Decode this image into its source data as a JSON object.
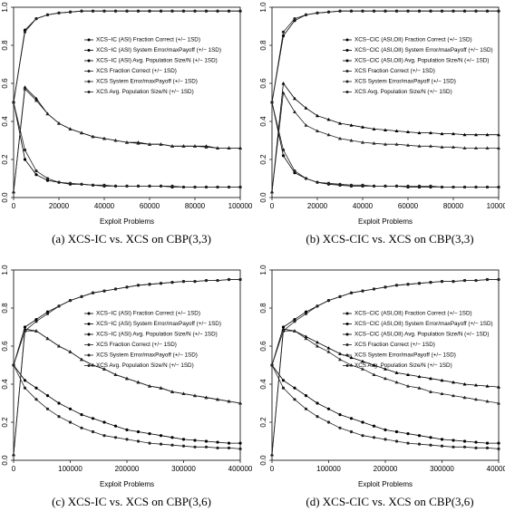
{
  "chart_data": [
    {
      "type": "line",
      "caption": "(a) XCS-IC vs. XCS on CBP(3,3)",
      "xlabel": "Exploit Problems",
      "x": [
        0,
        5000,
        10000,
        15000,
        20000,
        25000,
        30000,
        35000,
        40000,
        45000,
        50000,
        55000,
        60000,
        65000,
        70000,
        75000,
        80000,
        85000,
        90000,
        95000,
        100000
      ],
      "xlim": [
        0,
        100000
      ],
      "xticks": [
        0,
        20000,
        40000,
        60000,
        80000,
        100000
      ],
      "ylim": [
        0,
        1
      ],
      "yticks": [
        {
          "value": 0,
          "label": "0.0"
        },
        {
          "value": 0.2,
          "label": "0.2"
        },
        {
          "value": 0.4,
          "label": "0.4"
        },
        {
          "value": 0.6,
          "label": "0.6"
        },
        {
          "value": 0.8,
          "label": "0.8"
        },
        {
          "value": 1,
          "label": "1.0"
        }
      ],
      "series": [
        {
          "name": "XCS−IC (ASI) Fraction Correct (+/− 1SD)",
          "color": "#000",
          "values": [
            0.5,
            0.88,
            0.94,
            0.96,
            0.97,
            0.975,
            0.98,
            0.98,
            0.98,
            0.98,
            0.98,
            0.98,
            0.98,
            0.98,
            0.98,
            0.98,
            0.98,
            0.98,
            0.98,
            0.98,
            0.98
          ]
        },
        {
          "name": "XCS−IC (ASI) System Error/maxPayoff (+/− 1SD)",
          "color": "#000",
          "values": [
            0.5,
            0.2,
            0.12,
            0.09,
            0.08,
            0.07,
            0.07,
            0.065,
            0.06,
            0.06,
            0.06,
            0.06,
            0.06,
            0.06,
            0.055,
            0.055,
            0.055,
            0.055,
            0.055,
            0.055,
            0.055
          ]
        },
        {
          "name": "XCS−IC (ASI) Avg. Population Size/N (+/− 1SD)",
          "color": "#000",
          "values": [
            0.03,
            0.58,
            0.52,
            0.44,
            0.39,
            0.36,
            0.34,
            0.32,
            0.31,
            0.3,
            0.29,
            0.29,
            0.28,
            0.28,
            0.27,
            0.27,
            0.27,
            0.27,
            0.26,
            0.26,
            0.26
          ]
        },
        {
          "name": "XCS Fraction Correct (+/− 1SD)",
          "color": "#222",
          "values": [
            0.5,
            0.87,
            0.94,
            0.96,
            0.97,
            0.975,
            0.98,
            0.98,
            0.98,
            0.98,
            0.98,
            0.98,
            0.98,
            0.98,
            0.98,
            0.98,
            0.98,
            0.98,
            0.98,
            0.98,
            0.98
          ]
        },
        {
          "name": "XCS System Error/maxPayoff (+/− 1SD)",
          "color": "#222",
          "values": [
            0.5,
            0.25,
            0.14,
            0.1,
            0.08,
            0.075,
            0.07,
            0.065,
            0.065,
            0.06,
            0.06,
            0.06,
            0.06,
            0.06,
            0.06,
            0.055,
            0.055,
            0.055,
            0.055,
            0.055,
            0.055
          ]
        },
        {
          "name": "XCS Avg. Population Size/N (+/− 1SD)",
          "color": "#222",
          "values": [
            0.03,
            0.57,
            0.51,
            0.44,
            0.39,
            0.36,
            0.34,
            0.32,
            0.31,
            0.3,
            0.29,
            0.285,
            0.28,
            0.28,
            0.27,
            0.27,
            0.27,
            0.265,
            0.26,
            0.26,
            0.26
          ]
        }
      ]
    },
    {
      "type": "line",
      "caption": "(b) XCS-CIC vs. XCS on CBP(3,3)",
      "xlabel": "Exploit Problems",
      "x": [
        0,
        5000,
        10000,
        15000,
        20000,
        25000,
        30000,
        35000,
        40000,
        45000,
        50000,
        55000,
        60000,
        65000,
        70000,
        75000,
        80000,
        85000,
        90000,
        95000,
        100000
      ],
      "xlim": [
        0,
        100000
      ],
      "xticks": [
        0,
        20000,
        40000,
        60000,
        80000,
        100000
      ],
      "ylim": [
        0,
        1
      ],
      "yticks": [
        {
          "value": 0,
          "label": "0.0"
        },
        {
          "value": 0.2,
          "label": "0.2"
        },
        {
          "value": 0.4,
          "label": "0.4"
        },
        {
          "value": 0.6,
          "label": "0.6"
        },
        {
          "value": 0.8,
          "label": "0.8"
        },
        {
          "value": 1,
          "label": "1.0"
        }
      ],
      "series": [
        {
          "name": "XCS−CIC (ASI,OII) Fraction Correct (+/− 1SD)",
          "color": "#000",
          "values": [
            0.5,
            0.85,
            0.93,
            0.96,
            0.97,
            0.975,
            0.98,
            0.98,
            0.98,
            0.98,
            0.98,
            0.98,
            0.98,
            0.98,
            0.98,
            0.98,
            0.98,
            0.98,
            0.98,
            0.98,
            0.98
          ]
        },
        {
          "name": "XCS−CIC (ASI,OII) System Error/maxPayoff (+/− 1SD)",
          "color": "#000",
          "values": [
            0.5,
            0.22,
            0.13,
            0.1,
            0.08,
            0.07,
            0.065,
            0.06,
            0.06,
            0.06,
            0.06,
            0.06,
            0.055,
            0.055,
            0.055,
            0.055,
            0.055,
            0.055,
            0.055,
            0.055,
            0.055
          ]
        },
        {
          "name": "XCS−CIC (ASI,OII) Avg. Population Size/N (+/− 1SD)",
          "color": "#000",
          "values": [
            0.03,
            0.6,
            0.52,
            0.47,
            0.43,
            0.41,
            0.39,
            0.38,
            0.37,
            0.36,
            0.355,
            0.35,
            0.345,
            0.34,
            0.34,
            0.335,
            0.335,
            0.33,
            0.33,
            0.33,
            0.33
          ]
        },
        {
          "name": "XCS Fraction Correct (+/− 1SD)",
          "color": "#222",
          "values": [
            0.5,
            0.87,
            0.94,
            0.96,
            0.97,
            0.975,
            0.98,
            0.98,
            0.98,
            0.98,
            0.98,
            0.98,
            0.98,
            0.98,
            0.98,
            0.98,
            0.98,
            0.98,
            0.98,
            0.98,
            0.98
          ]
        },
        {
          "name": "XCS System Error/maxPayoff (+/− 1SD)",
          "color": "#222",
          "values": [
            0.5,
            0.25,
            0.14,
            0.1,
            0.08,
            0.075,
            0.07,
            0.065,
            0.065,
            0.06,
            0.06,
            0.06,
            0.06,
            0.06,
            0.06,
            0.055,
            0.055,
            0.055,
            0.055,
            0.055,
            0.055
          ]
        },
        {
          "name": "XCS Avg. Population Size/N (+/− 1SD)",
          "color": "#222",
          "values": [
            0.03,
            0.55,
            0.45,
            0.38,
            0.35,
            0.33,
            0.31,
            0.3,
            0.29,
            0.285,
            0.28,
            0.28,
            0.275,
            0.27,
            0.27,
            0.265,
            0.265,
            0.26,
            0.26,
            0.26,
            0.26
          ]
        }
      ]
    },
    {
      "type": "line",
      "caption": "(c) XCS-IC vs. XCS on CBP(3,6)",
      "xlabel": "Exploit Problems",
      "x": [
        0,
        20000,
        40000,
        60000,
        80000,
        100000,
        120000,
        140000,
        160000,
        180000,
        200000,
        220000,
        240000,
        260000,
        280000,
        300000,
        320000,
        340000,
        360000,
        380000,
        400000
      ],
      "xlim": [
        0,
        400000
      ],
      "xticks": [
        0,
        100000,
        200000,
        300000,
        400000
      ],
      "ylim": [
        0,
        1
      ],
      "yticks": [
        {
          "value": 0,
          "label": "0.0"
        },
        {
          "value": 0.2,
          "label": "0.2"
        },
        {
          "value": 0.4,
          "label": "0.4"
        },
        {
          "value": 0.6,
          "label": "0.6"
        },
        {
          "value": 0.8,
          "label": "0.8"
        },
        {
          "value": 1,
          "label": "1.0"
        }
      ],
      "series": [
        {
          "name": "XCS−IC (ASI) Fraction Correct (+/− 1SD)",
          "color": "#000",
          "values": [
            0.5,
            0.7,
            0.74,
            0.78,
            0.81,
            0.84,
            0.86,
            0.88,
            0.89,
            0.9,
            0.91,
            0.92,
            0.925,
            0.93,
            0.935,
            0.94,
            0.94,
            0.945,
            0.945,
            0.95,
            0.95
          ]
        },
        {
          "name": "XCS−IC (ASI) System Error/maxPayoff (+/− 1SD)",
          "color": "#000",
          "values": [
            0.5,
            0.42,
            0.38,
            0.34,
            0.3,
            0.27,
            0.24,
            0.22,
            0.2,
            0.18,
            0.16,
            0.15,
            0.14,
            0.13,
            0.12,
            0.11,
            0.105,
            0.1,
            0.095,
            0.09,
            0.09
          ]
        },
        {
          "name": "XCS−IC (ASI) Avg. Population Size/N (+/− 1SD)",
          "color": "#000",
          "values": [
            0.03,
            0.69,
            0.68,
            0.64,
            0.6,
            0.57,
            0.53,
            0.5,
            0.48,
            0.45,
            0.43,
            0.41,
            0.39,
            0.38,
            0.36,
            0.35,
            0.34,
            0.33,
            0.32,
            0.31,
            0.3
          ]
        },
        {
          "name": "XCS Fraction Correct (+/− 1SD)",
          "color": "#222",
          "values": [
            0.5,
            0.68,
            0.73,
            0.77,
            0.81,
            0.84,
            0.86,
            0.88,
            0.89,
            0.9,
            0.91,
            0.92,
            0.925,
            0.93,
            0.935,
            0.94,
            0.94,
            0.945,
            0.945,
            0.95,
            0.95
          ]
        },
        {
          "name": "XCS System Error/maxPayoff (+/− 1SD)",
          "color": "#222",
          "values": [
            0.5,
            0.38,
            0.32,
            0.27,
            0.23,
            0.2,
            0.17,
            0.15,
            0.13,
            0.12,
            0.11,
            0.1,
            0.09,
            0.085,
            0.08,
            0.075,
            0.07,
            0.07,
            0.065,
            0.065,
            0.06
          ]
        },
        {
          "name": "XCS Avg. Population Size/N (+/− 1SD)",
          "color": "#222",
          "values": [
            0.03,
            0.68,
            0.68,
            0.64,
            0.6,
            0.57,
            0.53,
            0.5,
            0.48,
            0.45,
            0.43,
            0.41,
            0.39,
            0.38,
            0.36,
            0.35,
            0.34,
            0.33,
            0.32,
            0.31,
            0.3
          ]
        }
      ]
    },
    {
      "type": "line",
      "caption": "(d) XCS-CIC vs. XCS on CBP(3,6)",
      "xlabel": "Exploit Problems",
      "x": [
        0,
        20000,
        40000,
        60000,
        80000,
        100000,
        120000,
        140000,
        160000,
        180000,
        200000,
        220000,
        240000,
        260000,
        280000,
        300000,
        320000,
        340000,
        360000,
        380000,
        400000
      ],
      "xlim": [
        0,
        400000
      ],
      "xticks": [
        0,
        100000,
        200000,
        300000,
        400000
      ],
      "ylim": [
        0,
        1
      ],
      "yticks": [
        {
          "value": 0,
          "label": "0.0"
        },
        {
          "value": 0.2,
          "label": "0.2"
        },
        {
          "value": 0.4,
          "label": "0.4"
        },
        {
          "value": 0.6,
          "label": "0.6"
        },
        {
          "value": 0.8,
          "label": "0.8"
        },
        {
          "value": 1,
          "label": "1.0"
        }
      ],
      "series": [
        {
          "name": "XCS−CIC (ASI,OII) Fraction Correct (+/− 1SD)",
          "color": "#000",
          "values": [
            0.5,
            0.7,
            0.74,
            0.78,
            0.81,
            0.84,
            0.86,
            0.88,
            0.89,
            0.9,
            0.91,
            0.92,
            0.925,
            0.93,
            0.935,
            0.94,
            0.94,
            0.945,
            0.945,
            0.95,
            0.95
          ]
        },
        {
          "name": "XCS−CIC (ASI,OII) System Error/maxPayoff (+/− 1SD)",
          "color": "#000",
          "values": [
            0.5,
            0.42,
            0.38,
            0.34,
            0.3,
            0.27,
            0.24,
            0.22,
            0.2,
            0.18,
            0.16,
            0.15,
            0.14,
            0.13,
            0.12,
            0.11,
            0.105,
            0.1,
            0.095,
            0.09,
            0.09
          ]
        },
        {
          "name": "XCS−CIC (ASI,OII) Avg. Population Size/N (+/− 1SD)",
          "color": "#000",
          "values": [
            0.03,
            0.69,
            0.68,
            0.65,
            0.62,
            0.59,
            0.56,
            0.54,
            0.52,
            0.5,
            0.48,
            0.46,
            0.45,
            0.44,
            0.43,
            0.42,
            0.41,
            0.4,
            0.395,
            0.39,
            0.385
          ]
        },
        {
          "name": "XCS Fraction Correct (+/− 1SD)",
          "color": "#222",
          "values": [
            0.5,
            0.68,
            0.73,
            0.77,
            0.81,
            0.84,
            0.86,
            0.88,
            0.89,
            0.9,
            0.91,
            0.92,
            0.925,
            0.93,
            0.935,
            0.94,
            0.94,
            0.945,
            0.945,
            0.95,
            0.95
          ]
        },
        {
          "name": "XCS System Error/maxPayoff (+/− 1SD)",
          "color": "#222",
          "values": [
            0.5,
            0.38,
            0.32,
            0.27,
            0.23,
            0.2,
            0.17,
            0.15,
            0.13,
            0.12,
            0.11,
            0.1,
            0.09,
            0.085,
            0.08,
            0.075,
            0.07,
            0.07,
            0.065,
            0.065,
            0.06
          ]
        },
        {
          "name": "XCS Avg. Population Size/N (+/− 1SD)",
          "color": "#222",
          "values": [
            0.03,
            0.68,
            0.68,
            0.64,
            0.6,
            0.57,
            0.53,
            0.5,
            0.48,
            0.45,
            0.43,
            0.41,
            0.39,
            0.38,
            0.36,
            0.35,
            0.34,
            0.33,
            0.32,
            0.31,
            0.3
          ]
        }
      ]
    }
  ]
}
